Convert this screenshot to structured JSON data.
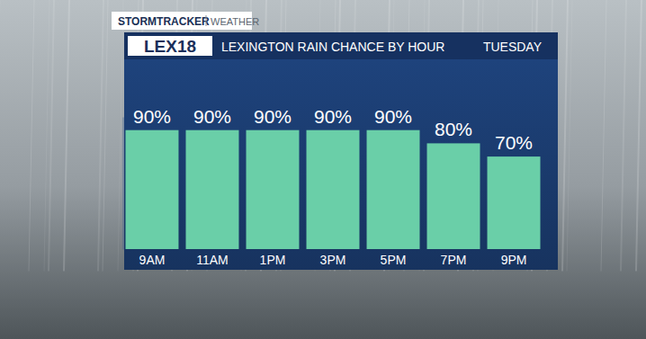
{
  "chart_data": {
    "type": "bar",
    "title": "LEXINGTON RAIN CHANCE BY HOUR",
    "subtitle": "TUESDAY",
    "annotations": [
      "STORMTRACKER",
      "WEATHER",
      "LEX18"
    ],
    "categories": [
      "9AM",
      "11AM",
      "1PM",
      "3PM",
      "5PM",
      "7PM",
      "9PM"
    ],
    "values": [
      90,
      90,
      90,
      90,
      90,
      80,
      70
    ],
    "value_labels": [
      "90%",
      "90%",
      "90%",
      "90%",
      "90%",
      "80%",
      "70%"
    ],
    "data_labels": true,
    "color": "#6acfa8",
    "ylim": [
      0,
      100
    ],
    "tick_labels": "x",
    "grid": false
  }
}
